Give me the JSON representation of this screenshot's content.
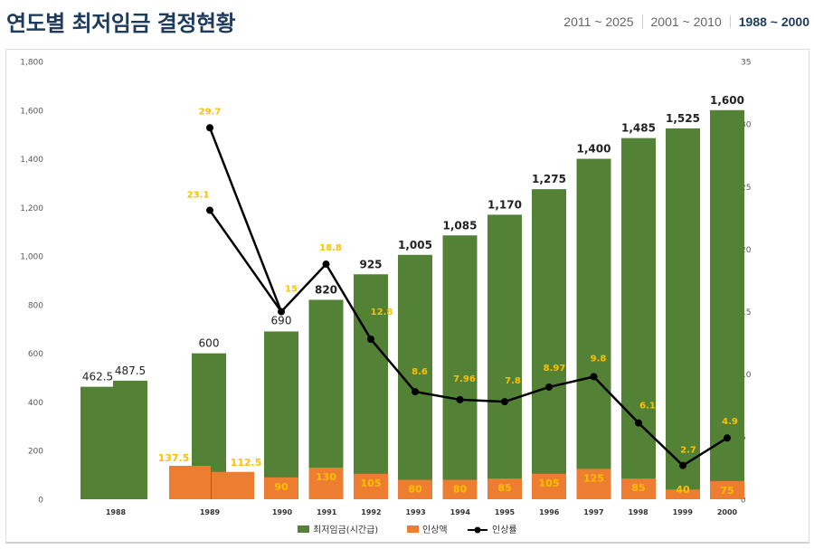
{
  "header": {
    "title": "연도별 최저임금 결정현황",
    "tabs": [
      {
        "label": "2011 ~ 2025",
        "active": false
      },
      {
        "label": "2001 ~ 2010",
        "active": false
      },
      {
        "label": "1988 ~ 2000",
        "active": true
      }
    ]
  },
  "chart_data": {
    "type": "bar",
    "categories": [
      "1988",
      "1989",
      "1990",
      "1991",
      "1992",
      "1993",
      "1994",
      "1995",
      "1996",
      "1997",
      "1998",
      "1999",
      "2000"
    ],
    "series": [
      {
        "name": "최저임금(시간급)",
        "type": "bar",
        "axis": "left",
        "color": "#538135",
        "points": [
          {
            "cat": "1988",
            "value": 462.5,
            "label": "462.5"
          },
          {
            "cat": "1988",
            "value": 487.5,
            "label": "487.5"
          },
          {
            "cat": "1989",
            "value": 600,
            "label": "600"
          },
          {
            "cat": "1990",
            "value": 690,
            "label": "690"
          },
          {
            "cat": "1991",
            "value": 820,
            "label": "820"
          },
          {
            "cat": "1992",
            "value": 925,
            "label": "925"
          },
          {
            "cat": "1993",
            "value": 1005,
            "label": "1,005"
          },
          {
            "cat": "1994",
            "value": 1085,
            "label": "1,085"
          },
          {
            "cat": "1995",
            "value": 1170,
            "label": "1,170"
          },
          {
            "cat": "1996",
            "value": 1275,
            "label": "1,275"
          },
          {
            "cat": "1997",
            "value": 1400,
            "label": "1,400"
          },
          {
            "cat": "1998",
            "value": 1485,
            "label": "1,485"
          },
          {
            "cat": "1999",
            "value": 1525,
            "label": "1,525"
          },
          {
            "cat": "2000",
            "value": 1600,
            "label": "1,600"
          }
        ]
      },
      {
        "name": "인상액",
        "type": "bar",
        "axis": "left",
        "color": "#ed7d31",
        "points": [
          {
            "cat": "1989",
            "value": 137.5,
            "label": "137.5"
          },
          {
            "cat": "1989",
            "value": 112.5,
            "label": "112.5"
          },
          {
            "cat": "1990",
            "value": 90,
            "label": "90"
          },
          {
            "cat": "1991",
            "value": 130,
            "label": "130"
          },
          {
            "cat": "1992",
            "value": 105,
            "label": "105"
          },
          {
            "cat": "1993",
            "value": 80,
            "label": "80"
          },
          {
            "cat": "1994",
            "value": 80,
            "label": "80"
          },
          {
            "cat": "1995",
            "value": 85,
            "label": "85"
          },
          {
            "cat": "1996",
            "value": 105,
            "label": "105"
          },
          {
            "cat": "1997",
            "value": 125,
            "label": "125"
          },
          {
            "cat": "1998",
            "value": 85,
            "label": "85"
          },
          {
            "cat": "1999",
            "value": 40,
            "label": "40"
          },
          {
            "cat": "2000",
            "value": 75,
            "label": "75"
          }
        ]
      },
      {
        "name": "인상률",
        "type": "line",
        "axis": "right",
        "color": "#000000",
        "points": [
          {
            "cat": "1989",
            "value": 29.7,
            "label": "29.7"
          },
          {
            "cat": "1989",
            "value": 23.1,
            "label": "23.1"
          },
          {
            "cat": "1990",
            "value": 15,
            "label": "15"
          },
          {
            "cat": "1991",
            "value": 18.8,
            "label": "18.8"
          },
          {
            "cat": "1992",
            "value": 12.8,
            "label": "12.8"
          },
          {
            "cat": "1993",
            "value": 8.6,
            "label": "8.6"
          },
          {
            "cat": "1994",
            "value": 7.96,
            "label": "7.96"
          },
          {
            "cat": "1995",
            "value": 7.8,
            "label": "7.8"
          },
          {
            "cat": "1996",
            "value": 8.97,
            "label": "8.97"
          },
          {
            "cat": "1997",
            "value": 9.8,
            "label": "9.8"
          },
          {
            "cat": "1998",
            "value": 6.1,
            "label": "6.1"
          },
          {
            "cat": "1999",
            "value": 2.7,
            "label": "2.7"
          },
          {
            "cat": "2000",
            "value": 4.9,
            "label": "4.9"
          }
        ]
      }
    ],
    "y_left": {
      "min": 0,
      "max": 1800,
      "ticks": [
        "0",
        "200",
        "400",
        "600",
        "800",
        "1,000",
        "1,200",
        "1,400",
        "1,600",
        "1,800"
      ]
    },
    "y_right": {
      "min": 0,
      "max": 35,
      "ticks": [
        "0",
        "5",
        "10",
        "15",
        "20",
        "25",
        "30",
        "35"
      ]
    },
    "legend_position": "bottom",
    "grid": false,
    "label_colors": {
      "wage": "#222222",
      "increase": "#ffc000"
    }
  }
}
